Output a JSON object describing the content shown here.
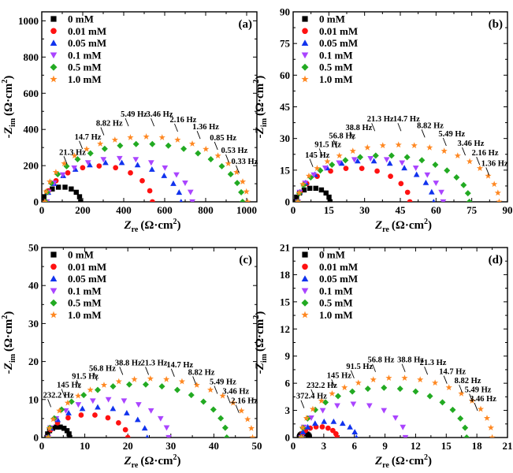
{
  "chart_data": [
    {
      "type": "scatter",
      "panel_label": "(a)",
      "xlim": [
        0,
        1050
      ],
      "ylim": [
        0,
        1050
      ],
      "x_ticks": [
        0,
        200,
        400,
        600,
        800,
        1000
      ],
      "y_ticks": [
        0,
        200,
        400,
        600,
        800,
        1000
      ],
      "minor_step": 100,
      "xlabel_main": "Z",
      "xlabel_sub": "re",
      "xlabel_unit": "(Ω·cm",
      "xlabel_sup": "2",
      "xlabel_close": ")",
      "ylabel_main": "-Z",
      "ylabel_sub": "im",
      "ylabel_unit": "(Ω·cm",
      "ylabel_sup": "2",
      "ylabel_close": ")",
      "legend": [
        "0 mM",
        "0.01 mM",
        "0.05 mM",
        "0.1 mM",
        "0.5 mM",
        "1.0 mM"
      ],
      "series": [
        {
          "name": "0 mM",
          "r0": 5,
          "r1": 190,
          "peak": 82
        },
        {
          "name": "0.01 mM",
          "r0": 20,
          "r1": 540,
          "peak": 198
        },
        {
          "name": "0.05 mM",
          "r0": 22,
          "r1": 680,
          "peak": 218
        },
        {
          "name": "0.1 mM",
          "r0": 25,
          "r1": 735,
          "peak": 240
        },
        {
          "name": "0.5 mM",
          "r0": 20,
          "r1": 980,
          "peak": 320
        },
        {
          "name": "1.0 mM",
          "r0": 15,
          "r1": 1005,
          "peak": 360
        }
      ],
      "freq_labels": [
        {
          "text": "21.3 Hz",
          "x": 85,
          "y": 260
        },
        {
          "text": "14.7 Hz",
          "x": 160,
          "y": 345
        },
        {
          "text": "8.82 Hz",
          "x": 265,
          "y": 420
        },
        {
          "text": "5.49 Hz",
          "x": 385,
          "y": 470
        },
        {
          "text": "3.46 Hz",
          "x": 510,
          "y": 470
        },
        {
          "text": "2.16 Hz",
          "x": 625,
          "y": 440
        },
        {
          "text": "1.36 Hz",
          "x": 735,
          "y": 400
        },
        {
          "text": "0.85 Hz",
          "x": 820,
          "y": 340
        },
        {
          "text": "0.53 Hz",
          "x": 875,
          "y": 270
        },
        {
          "text": "0.33 Hz",
          "x": 925,
          "y": 210
        }
      ]
    },
    {
      "type": "scatter",
      "panel_label": "(b)",
      "xlim": [
        0,
        90
      ],
      "ylim": [
        0,
        90
      ],
      "x_ticks": [
        0,
        15,
        30,
        45,
        60,
        75,
        90
      ],
      "y_ticks": [
        0,
        15,
        30,
        45,
        60,
        75,
        90
      ],
      "minor_step": 7.5,
      "xlabel_main": "Z",
      "xlabel_sub": "re",
      "xlabel_unit": "(Ω·cm",
      "xlabel_sup": "2",
      "xlabel_close": ")",
      "ylabel_main": "-Z",
      "ylabel_sub": "im",
      "ylabel_unit": "(Ω·cm",
      "ylabel_sup": "2",
      "ylabel_close": ")",
      "legend": [
        "0 mM",
        "0.01 mM",
        "0.05 mM",
        "0.1 mM",
        "0.5 mM",
        "1.0 mM"
      ],
      "series": [
        {
          "name": "0 mM",
          "r0": 1,
          "r1": 15.5,
          "peak": 6.5
        },
        {
          "name": "0.01 mM",
          "r0": 2,
          "r1": 49,
          "peak": 16
        },
        {
          "name": "0.05 mM",
          "r0": 2,
          "r1": 59,
          "peak": 19.5
        },
        {
          "name": "0.1 mM",
          "r0": 2,
          "r1": 63,
          "peak": 20.5
        },
        {
          "name": "0.5 mM",
          "r0": 2,
          "r1": 74,
          "peak": 22
        },
        {
          "name": "1.0 mM",
          "r0": 2,
          "r1": 86.5,
          "peak": 27
        }
      ],
      "freq_labels": [
        {
          "text": "145 Hz",
          "x": 5,
          "y": 21
        },
        {
          "text": "91.5 Hz",
          "x": 9,
          "y": 26
        },
        {
          "text": "56.8 Hz",
          "x": 15,
          "y": 30
        },
        {
          "text": "38.8 Hz",
          "x": 22,
          "y": 34
        },
        {
          "text": "21.3 Hz",
          "x": 31,
          "y": 38
        },
        {
          "text": "14.7 Hz",
          "x": 42,
          "y": 38
        },
        {
          "text": "8.82 Hz",
          "x": 52,
          "y": 35
        },
        {
          "text": "5.49 Hz",
          "x": 61,
          "y": 31
        },
        {
          "text": "3.46 Hz",
          "x": 69,
          "y": 26.5
        },
        {
          "text": "2.16 Hz",
          "x": 75,
          "y": 22
        },
        {
          "text": "1.36 Hz",
          "x": 79,
          "y": 17
        }
      ]
    },
    {
      "type": "scatter",
      "panel_label": "(c)",
      "xlim": [
        0,
        50
      ],
      "ylim": [
        0,
        50
      ],
      "x_ticks": [
        0,
        10,
        20,
        30,
        40,
        50
      ],
      "y_ticks": [
        0,
        10,
        20,
        30,
        40,
        50
      ],
      "minor_step": 5,
      "xlabel_main": "Z",
      "xlabel_sub": "re",
      "xlabel_unit": "(Ω·cm",
      "xlabel_sup": "2",
      "xlabel_close": ")",
      "ylabel_main": "-Z",
      "ylabel_sub": "im",
      "ylabel_unit": "(Ω·cm",
      "ylabel_sup": "2",
      "ylabel_close": ")",
      "legend": [
        "0 mM",
        "0.01 mM",
        "0.05 mM",
        "0.1 mM",
        "0.5 mM",
        "1.0 mM"
      ],
      "series": [
        {
          "name": "0 mM",
          "r0": 1.2,
          "r1": 6.5,
          "peak": 2.8
        },
        {
          "name": "0.01 mM",
          "r0": 1.5,
          "r1": 20,
          "peak": 6
        },
        {
          "name": "0.05 mM",
          "r0": 1.5,
          "r1": 24.5,
          "peak": 8
        },
        {
          "name": "0.1 mM",
          "r0": 1.5,
          "r1": 29.5,
          "peak": 10
        },
        {
          "name": "0.5 mM",
          "r0": 1.5,
          "r1": 43,
          "peak": 14
        },
        {
          "name": "1.0 mM",
          "r0": 1.5,
          "r1": 49,
          "peak": 15.5
        }
      ],
      "freq_labels": [
        {
          "text": "232.2 Hz",
          "x": 0.3,
          "y": 10.5
        },
        {
          "text": "145 Hz",
          "x": 3.5,
          "y": 13.2
        },
        {
          "text": "91.5 Hz",
          "x": 7,
          "y": 15.5
        },
        {
          "text": "56.8 Hz",
          "x": 11,
          "y": 17.5
        },
        {
          "text": "38.8 Hz",
          "x": 17,
          "y": 19
        },
        {
          "text": "21.3 Hz",
          "x": 23,
          "y": 19
        },
        {
          "text": "14.7 Hz",
          "x": 29,
          "y": 18.5
        },
        {
          "text": "8.82 Hz",
          "x": 34,
          "y": 16.5
        },
        {
          "text": "5.49 Hz",
          "x": 39,
          "y": 14
        },
        {
          "text": "3.46 Hz",
          "x": 42,
          "y": 11.5
        },
        {
          "text": "2.16 Hz",
          "x": 44,
          "y": 9
        }
      ]
    },
    {
      "type": "scatter",
      "panel_label": "(d)",
      "xlim": [
        0,
        21
      ],
      "ylim": [
        0,
        21
      ],
      "x_ticks": [
        0,
        3,
        6,
        9,
        12,
        15,
        18,
        21
      ],
      "y_ticks": [
        0,
        3,
        6,
        9,
        12,
        15,
        18,
        21
      ],
      "minor_step": 1.5,
      "xlabel_main": "Z",
      "xlabel_sub": "re",
      "xlabel_unit": "(Ω·cm",
      "xlabel_sup": "2",
      "xlabel_close": ")",
      "ylabel_main": "-Z",
      "ylabel_sub": "im",
      "ylabel_unit": "(Ω·cm",
      "ylabel_sup": "2",
      "ylabel_close": ")",
      "legend": [
        "0 mM",
        "0.01 mM",
        "0.05 mM",
        "0.1 mM",
        "0.5 mM",
        "1.0 mM"
      ],
      "series": [
        {
          "name": "0 mM",
          "r0": 0.6,
          "r1": 1.6,
          "peak": 0.45
        },
        {
          "name": "0.01 mM",
          "r0": 0.8,
          "r1": 4.3,
          "peak": 1.2
        },
        {
          "name": "0.05 mM",
          "r0": 0.8,
          "r1": 6.2,
          "peak": 1.8
        },
        {
          "name": "0.1 mM",
          "r0": 0.8,
          "r1": 11,
          "peak": 3.7
        },
        {
          "name": "0.5 mM",
          "r0": 0.8,
          "r1": 17,
          "peak": 5.5
        },
        {
          "name": "1.0 mM",
          "r0": 0.8,
          "r1": 19.5,
          "peak": 6.6
        }
      ],
      "freq_labels": [
        {
          "text": "372.4 Hz",
          "x": 0.3,
          "y": 4.3
        },
        {
          "text": "232.2 Hz",
          "x": 1.3,
          "y": 5.5
        },
        {
          "text": "145 Hz",
          "x": 3.3,
          "y": 6.6
        },
        {
          "text": "91.5 Hz",
          "x": 5.2,
          "y": 7.6
        },
        {
          "text": "56.8 Hz",
          "x": 7.3,
          "y": 8.3
        },
        {
          "text": "38.8 Hz",
          "x": 10.2,
          "y": 8.3
        },
        {
          "text": "21.3 Hz",
          "x": 12.4,
          "y": 8.0
        },
        {
          "text": "14.7 Hz",
          "x": 14.3,
          "y": 7.0
        },
        {
          "text": "8.82 Hz",
          "x": 15.8,
          "y": 6.0
        },
        {
          "text": "5.49 Hz",
          "x": 16.8,
          "y": 5.0
        },
        {
          "text": "3.46 Hz",
          "x": 17.3,
          "y": 4.0
        }
      ]
    }
  ],
  "colors": {
    "0 mM": "#000000",
    "0.01 mM": "#ff1111",
    "0.05 mM": "#1133ee",
    "0.1 mM": "#aa44ff",
    "0.5 mM": "#22aa22",
    "1.0 mM": "#ff8822"
  },
  "markers": {
    "0 mM": "square",
    "0.01 mM": "circle",
    "0.05 mM": "triangle-up",
    "0.1 mM": "triangle-down",
    "0.5 mM": "diamond",
    "1.0 mM": "star"
  }
}
